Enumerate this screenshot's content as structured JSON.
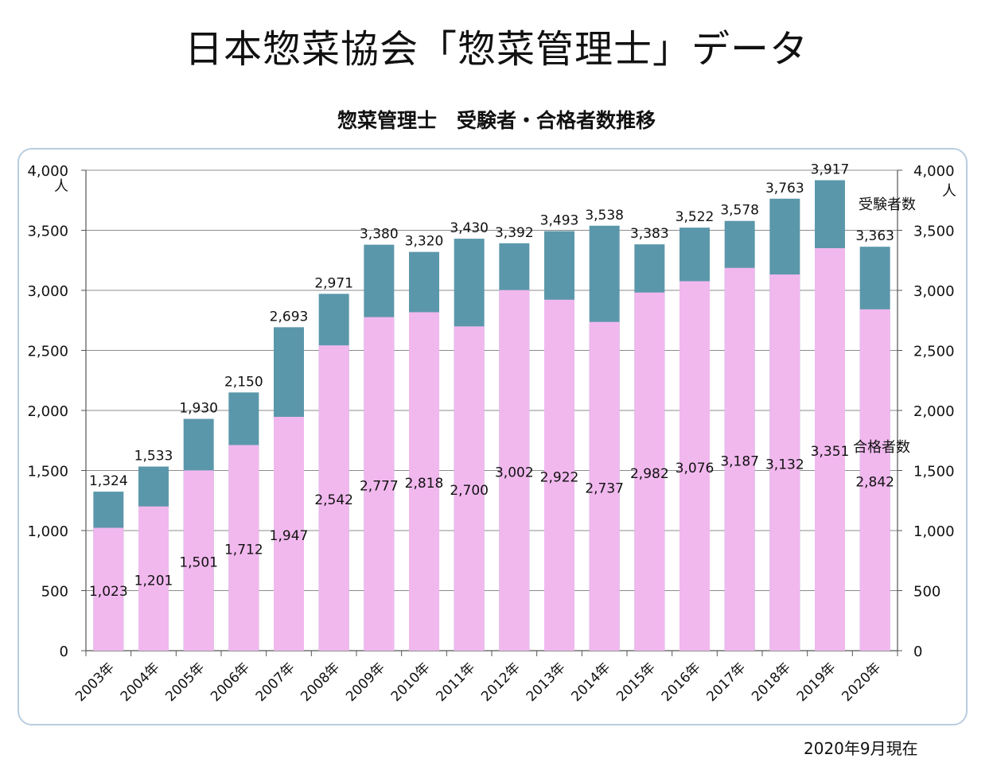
{
  "page": {
    "title": "日本惣菜協会「惣菜管理士」データ",
    "as_of": "2020年9月現在"
  },
  "chart_data": {
    "type": "bar",
    "title": "惣菜管理士　受験者・合格者数推移",
    "categories": [
      "2003年",
      "2004年",
      "2005年",
      "2006年",
      "2007年",
      "2008年",
      "2009年",
      "2010年",
      "2011年",
      "2012年",
      "2013年",
      "2014年",
      "2015年",
      "2016年",
      "2017年",
      "2018年",
      "2019年",
      "2020年"
    ],
    "series": [
      {
        "name": "受験者数",
        "color": "#5b97ab",
        "values": [
          1324,
          1533,
          1930,
          2150,
          2693,
          2971,
          3380,
          3320,
          3430,
          3392,
          3493,
          3538,
          3383,
          3522,
          3578,
          3763,
          3917,
          3363
        ]
      },
      {
        "name": "合格者数",
        "color": "#f1b8ee",
        "values": [
          1023,
          1201,
          1501,
          1712,
          1947,
          2542,
          2777,
          2818,
          2700,
          3002,
          2922,
          2737,
          2982,
          3076,
          3187,
          3132,
          3351,
          2842
        ]
      }
    ],
    "ylim": [
      0,
      4000
    ],
    "yticks": [
      0,
      500,
      1000,
      1500,
      2000,
      2500,
      3000,
      3500,
      4000
    ],
    "ytick_labels": [
      "0",
      "500",
      "1,000",
      "1,500",
      "2,000",
      "2,500",
      "3,000",
      "3,500",
      "4,000"
    ],
    "y_unit_left": "人",
    "y_unit_right": "人",
    "examinee_labels": [
      "1,324",
      "1,533",
      "1,930",
      "2,150",
      "2,693",
      "2,971",
      "3,380",
      "3,320",
      "3,430",
      "3,392",
      "3,493",
      "3,538",
      "3,383",
      "3,522",
      "3,578",
      "3,763",
      "3,917",
      "3,363"
    ],
    "passer_labels": [
      "1,023",
      "1,201",
      "1,501",
      "1,712",
      "1,947",
      "2,542",
      "2,777",
      "2,818",
      "2,700",
      "3,002",
      "2,922",
      "2,737",
      "2,982",
      "3,076",
      "3,187",
      "3,132",
      "3,351",
      "2,842"
    ],
    "grid": true,
    "legend_placement": "inline-right"
  }
}
